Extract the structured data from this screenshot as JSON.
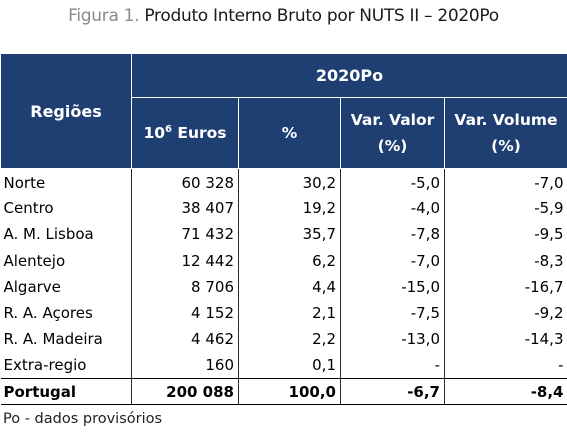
{
  "caption": {
    "figure_label": "Figura 1.",
    "title": "Produto Interno Bruto por NUTS II – 2020Po"
  },
  "table": {
    "header": {
      "regions": "Regiões",
      "group": "2020Po",
      "euros_base": "10",
      "euros_exp": "6",
      "euros_unit": " Euros",
      "percent": "%",
      "var_valor": "Var. Valor",
      "var_valor_unit": "(%)",
      "var_volume": "Var. Volume",
      "var_volume_unit": "(%)"
    },
    "rows": [
      {
        "region": "Norte",
        "euros": "60 328",
        "pct": "30,2",
        "var_valor": "-5,0",
        "var_volume": "-7,0"
      },
      {
        "region": "Centro",
        "euros": "38 407",
        "pct": "19,2",
        "var_valor": "-4,0",
        "var_volume": "-5,9"
      },
      {
        "region": "A. M. Lisboa",
        "euros": "71 432",
        "pct": "35,7",
        "var_valor": "-7,8",
        "var_volume": "-9,5"
      },
      {
        "region": "Alentejo",
        "euros": "12 442",
        "pct": "6,2",
        "var_valor": "-7,0",
        "var_volume": "-8,3"
      },
      {
        "region": "Algarve",
        "euros": "8 706",
        "pct": "4,4",
        "var_valor": "-15,0",
        "var_volume": "-16,7"
      },
      {
        "region": "R. A. Açores",
        "euros": "4 152",
        "pct": "2,1",
        "var_valor": "-7,5",
        "var_volume": "-9,2"
      },
      {
        "region": "R. A. Madeira",
        "euros": "4 462",
        "pct": "2,2",
        "var_valor": "-13,0",
        "var_volume": "-14,3"
      },
      {
        "region": "Extra-regio",
        "euros": "160",
        "pct": "0,1",
        "var_valor": "-",
        "var_volume": "-"
      }
    ],
    "total": {
      "region": "Portugal",
      "euros": "200 088",
      "pct": "100,0",
      "var_valor": "-6,7",
      "var_volume": "-8,4"
    }
  },
  "note": "Po - dados provisórios",
  "colors": {
    "header_bg": "#1f3f73",
    "header_text": "#ffffff"
  }
}
